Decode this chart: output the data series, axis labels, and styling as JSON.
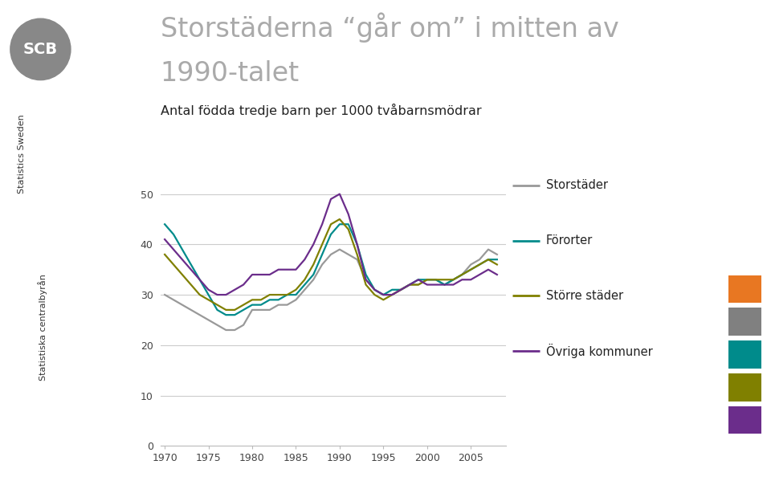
{
  "title_line1": "Storstäderna “går om” i mitten av",
  "title_line2": "1990-talet",
  "subtitle": "Antal födda tredje barn per 1000 tvåbarnsmödrar",
  "years": [
    1970,
    1971,
    1972,
    1973,
    1974,
    1975,
    1976,
    1977,
    1978,
    1979,
    1980,
    1981,
    1982,
    1983,
    1984,
    1985,
    1986,
    1987,
    1988,
    1989,
    1990,
    1991,
    1992,
    1993,
    1994,
    1995,
    1996,
    1997,
    1998,
    1999,
    2000,
    2001,
    2002,
    2003,
    2004,
    2005,
    2006,
    2007,
    2008
  ],
  "storstader": [
    30,
    29,
    28,
    27,
    26,
    25,
    24,
    23,
    23,
    24,
    27,
    27,
    27,
    28,
    28,
    29,
    31,
    33,
    36,
    38,
    39,
    38,
    37,
    33,
    31,
    30,
    30,
    31,
    32,
    32,
    33,
    33,
    32,
    33,
    34,
    36,
    37,
    39,
    38
  ],
  "fororter": [
    44,
    42,
    39,
    36,
    33,
    30,
    27,
    26,
    26,
    27,
    28,
    28,
    29,
    29,
    30,
    30,
    32,
    34,
    38,
    42,
    44,
    44,
    40,
    34,
    31,
    30,
    31,
    31,
    32,
    33,
    33,
    33,
    32,
    33,
    34,
    35,
    36,
    37,
    37
  ],
  "storre_stader": [
    38,
    36,
    34,
    32,
    30,
    29,
    28,
    27,
    27,
    28,
    29,
    29,
    30,
    30,
    30,
    31,
    33,
    36,
    40,
    44,
    45,
    43,
    38,
    32,
    30,
    29,
    30,
    31,
    32,
    32,
    33,
    33,
    33,
    33,
    34,
    35,
    36,
    37,
    36
  ],
  "ovriga": [
    41,
    39,
    37,
    35,
    33,
    31,
    30,
    30,
    31,
    32,
    34,
    34,
    34,
    35,
    35,
    35,
    37,
    40,
    44,
    49,
    50,
    46,
    40,
    33,
    31,
    30,
    30,
    31,
    32,
    33,
    32,
    32,
    32,
    32,
    33,
    33,
    34,
    35,
    34
  ],
  "color_storstader": "#999999",
  "color_fororter": "#008B8B",
  "color_storre_stader": "#808000",
  "color_ovriga": "#6B2D8B",
  "title_color": "#aaaaaa",
  "subtitle_color": "#222222",
  "yticks": [
    0,
    10,
    20,
    30,
    40,
    50
  ],
  "xticks": [
    1970,
    1975,
    1980,
    1985,
    1990,
    1995,
    2000,
    2005
  ],
  "ylim": [
    0,
    55
  ],
  "xlim": [
    1969.5,
    2009
  ],
  "legend_labels": [
    "Storstäder",
    "Förorter",
    "Större städer",
    "Övriga kommuner"
  ],
  "bg_color": "#ffffff",
  "squares_colors": [
    "#E87722",
    "#808080",
    "#008B8B",
    "#808000",
    "#6B2D8B"
  ],
  "line_width": 1.6
}
